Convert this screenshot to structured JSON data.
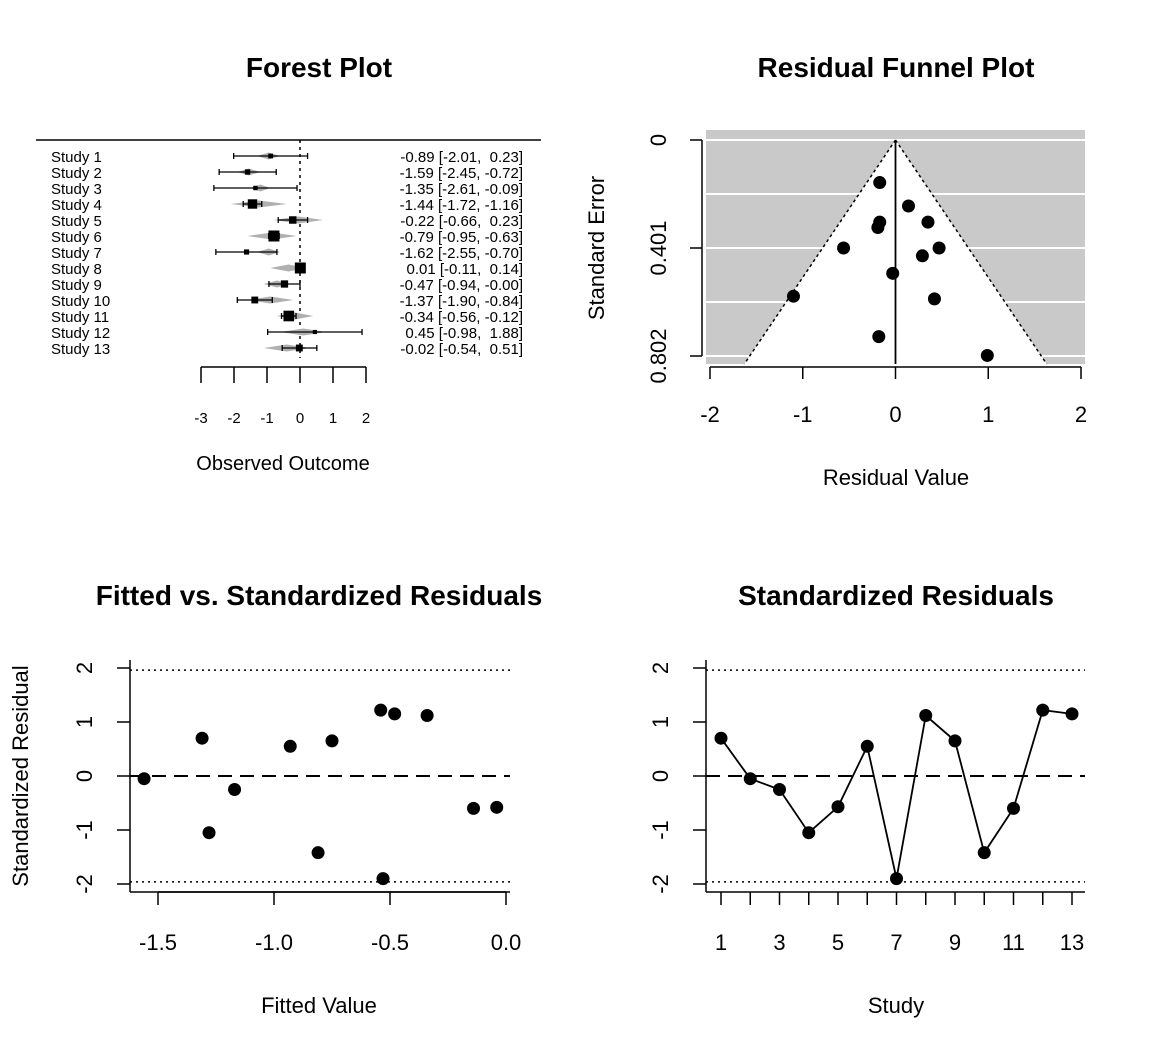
{
  "chart_data": [
    {
      "panel": "forest",
      "type": "forest",
      "title": "Forest Plot",
      "xlabel": "Observed Outcome",
      "xlim": [
        -3,
        2
      ],
      "x_ticks": [
        "-3",
        "-2",
        "-1",
        "0",
        "1",
        "2"
      ],
      "reference_line": 0,
      "studies": [
        {
          "label": "Study 1",
          "est": -0.89,
          "lo": -2.01,
          "hi": 0.23,
          "text": "-0.89 [-2.01,  0.23]",
          "fit_lo": -1.3,
          "fit_hi": -0.6
        },
        {
          "label": "Study 2",
          "est": -1.59,
          "lo": -2.45,
          "hi": -0.72,
          "text": "-1.59 [-2.45, -0.72]",
          "fit_lo": -1.9,
          "fit_hi": -1.2
        },
        {
          "label": "Study 3",
          "est": -1.35,
          "lo": -2.61,
          "hi": -0.09,
          "text": "-1.35 [-2.61, -0.09]",
          "fit_lo": -1.5,
          "fit_hi": -0.9
        },
        {
          "label": "Study 4",
          "est": -1.44,
          "lo": -1.72,
          "hi": -1.16,
          "text": "-1.44 [-1.72, -1.16]",
          "fit_lo": -2.1,
          "fit_hi": -0.4
        },
        {
          "label": "Study 5",
          "est": -0.22,
          "lo": -0.66,
          "hi": 0.23,
          "text": "-0.22 [-0.66,  0.23]",
          "fit_lo": -0.8,
          "fit_hi": 0.7
        },
        {
          "label": "Study 6",
          "est": -0.79,
          "lo": -0.95,
          "hi": -0.63,
          "text": "-0.79 [-0.95, -0.63]",
          "fit_lo": -1.6,
          "fit_hi": -0.1
        },
        {
          "label": "Study 7",
          "est": -1.62,
          "lo": -2.55,
          "hi": -0.7,
          "text": "-1.62 [-2.55, -0.70]",
          "fit_lo": -1.3,
          "fit_hi": -0.6
        },
        {
          "label": "Study 8",
          "est": 0.01,
          "lo": -0.11,
          "hi": 0.14,
          "text": " 0.01 [-0.11,  0.14]",
          "fit_lo": -0.9,
          "fit_hi": 0.2
        },
        {
          "label": "Study 9",
          "est": -0.47,
          "lo": -0.94,
          "hi": -0.0,
          "text": "-0.47 [-0.94, -0.00]",
          "fit_lo": -1.1,
          "fit_hi": -0.3
        },
        {
          "label": "Study 10",
          "est": -1.37,
          "lo": -1.9,
          "hi": -0.84,
          "text": "-1.37 [-1.90, -0.84]",
          "fit_lo": -1.6,
          "fit_hi": -0.2
        },
        {
          "label": "Study 11",
          "est": -0.34,
          "lo": -0.56,
          "hi": -0.12,
          "text": "-0.34 [-0.56, -0.12]",
          "fit_lo": -0.7,
          "fit_hi": 0.4
        },
        {
          "label": "Study 12",
          "est": 0.45,
          "lo": -0.98,
          "hi": 1.88,
          "text": " 0.45 [-0.98,  1.88]",
          "fit_lo": -0.6,
          "fit_hi": 0.8
        },
        {
          "label": "Study 13",
          "est": -0.02,
          "lo": -0.54,
          "hi": 0.51,
          "text": "-0.02 [-0.54,  0.51]",
          "fit_lo": -1.1,
          "fit_hi": 0.3
        }
      ]
    },
    {
      "panel": "funnel",
      "type": "scatter",
      "title": "Residual Funnel Plot",
      "xlabel": "Residual Value",
      "ylabel": "Standard Error",
      "xlim": [
        -2,
        2
      ],
      "ylim": [
        0.802,
        0
      ],
      "x_ticks": [
        "-2",
        "-1",
        "0",
        "1",
        "2"
      ],
      "y_ticks": [
        "0",
        "0.401",
        "0.802"
      ],
      "y_tick_values": [
        0,
        0.401,
        0.802
      ],
      "funnel_limit_per_se": 1.96,
      "points": [
        {
          "x": -0.17,
          "y": 0.158
        },
        {
          "x": 0.14,
          "y": 0.245
        },
        {
          "x": -0.17,
          "y": 0.305
        },
        {
          "x": 0.35,
          "y": 0.305
        },
        {
          "x": -0.19,
          "y": 0.325
        },
        {
          "x": -0.56,
          "y": 0.401
        },
        {
          "x": 0.47,
          "y": 0.401
        },
        {
          "x": 0.29,
          "y": 0.43
        },
        {
          "x": -0.03,
          "y": 0.495
        },
        {
          "x": -1.1,
          "y": 0.58
        },
        {
          "x": 0.42,
          "y": 0.59
        },
        {
          "x": -0.18,
          "y": 0.73
        },
        {
          "x": 0.99,
          "y": 0.8
        }
      ]
    },
    {
      "panel": "fitted",
      "type": "scatter",
      "title": "Fitted vs. Standardized Residuals",
      "xlabel": "Fitted Value",
      "ylabel": "Standardized Residual",
      "xlim": [
        -1.6,
        0.0
      ],
      "ylim": [
        -2,
        2
      ],
      "x_ticks": [
        "-1.5",
        "-1.0",
        "-0.5",
        "0.0"
      ],
      "x_tick_values": [
        -1.5,
        -1.0,
        -0.5,
        0.0
      ],
      "y_ticks": [
        "-2",
        "-1",
        "0",
        "1",
        "2"
      ],
      "points": [
        {
          "x": -1.56,
          "y": -0.05
        },
        {
          "x": -1.31,
          "y": 0.7
        },
        {
          "x": -1.28,
          "y": -1.05
        },
        {
          "x": -1.17,
          "y": -0.25
        },
        {
          "x": -0.93,
          "y": 0.55
        },
        {
          "x": -0.81,
          "y": -1.42
        },
        {
          "x": -0.75,
          "y": 0.65
        },
        {
          "x": -0.54,
          "y": 1.22
        },
        {
          "x": -0.53,
          "y": -1.9
        },
        {
          "x": -0.48,
          "y": 1.15
        },
        {
          "x": -0.34,
          "y": 1.12
        },
        {
          "x": -0.14,
          "y": -0.6
        },
        {
          "x": -0.04,
          "y": -0.58
        }
      ]
    },
    {
      "panel": "stdres",
      "type": "line",
      "title": "Standardized Residuals",
      "xlabel": "Study",
      "ylabel": "",
      "xlim": [
        0.6,
        13.4
      ],
      "ylim": [
        -2,
        2
      ],
      "x_ticks": [
        "1",
        "3",
        "5",
        "7",
        "9",
        "11",
        "13"
      ],
      "y_ticks": [
        "-2",
        "-1",
        "0",
        "1",
        "2"
      ],
      "x": [
        1,
        2,
        3,
        4,
        5,
        6,
        7,
        8,
        9,
        10,
        11,
        12,
        13
      ],
      "values": [
        0.7,
        -0.05,
        -0.25,
        -1.05,
        -0.57,
        0.55,
        -1.9,
        1.12,
        0.65,
        -1.42,
        -0.6,
        1.22,
        1.15
      ]
    }
  ]
}
